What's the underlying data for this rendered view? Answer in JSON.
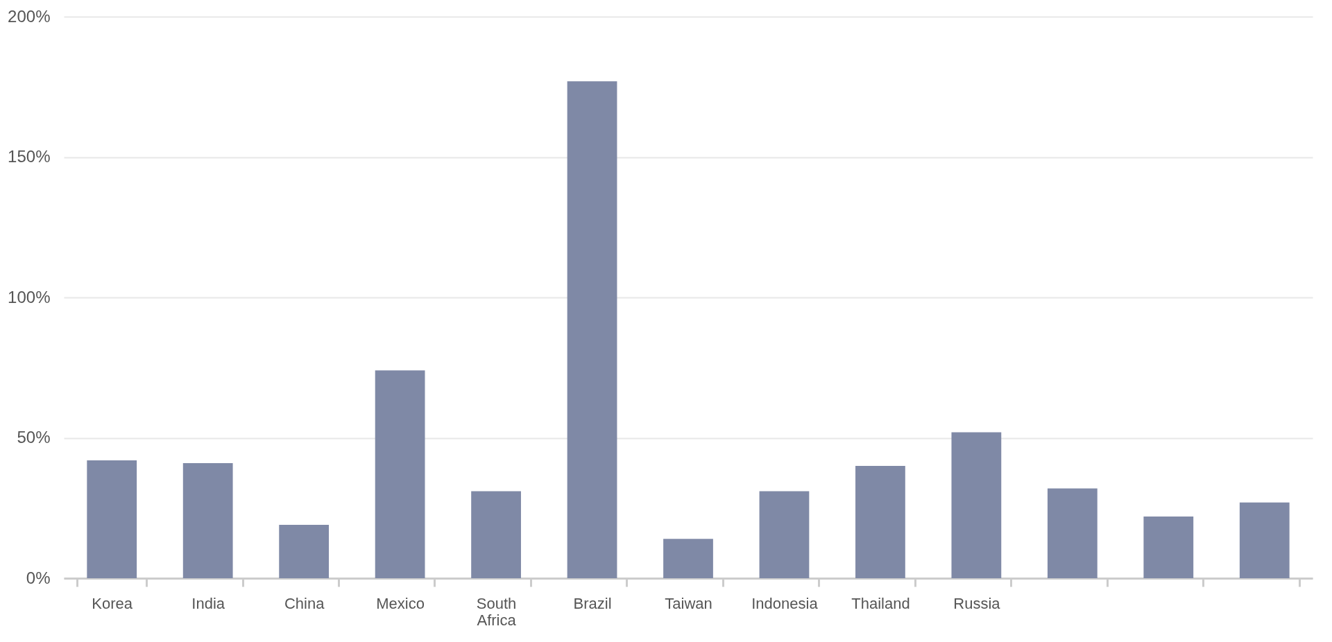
{
  "chart_data": {
    "type": "bar",
    "categories": [
      "Korea",
      "India",
      "China",
      "Mexico",
      "South Africa",
      "Brazil",
      "Taiwan",
      "Indonesia",
      "Thailand",
      "Russia",
      null,
      null,
      null
    ],
    "values": [
      42,
      41,
      19,
      74,
      31,
      177,
      14,
      31,
      40,
      52,
      32,
      22,
      27
    ],
    "color": "#7f89a6",
    "ylim": [
      0,
      200
    ],
    "yticks": [
      {
        "value": 0,
        "label": "0%"
      },
      {
        "value": 50,
        "label": "50%"
      },
      {
        "value": 100,
        "label": "100%"
      },
      {
        "value": 150,
        "label": "150%"
      },
      {
        "value": 200,
        "label": "200%"
      }
    ],
    "grid": "y"
  }
}
